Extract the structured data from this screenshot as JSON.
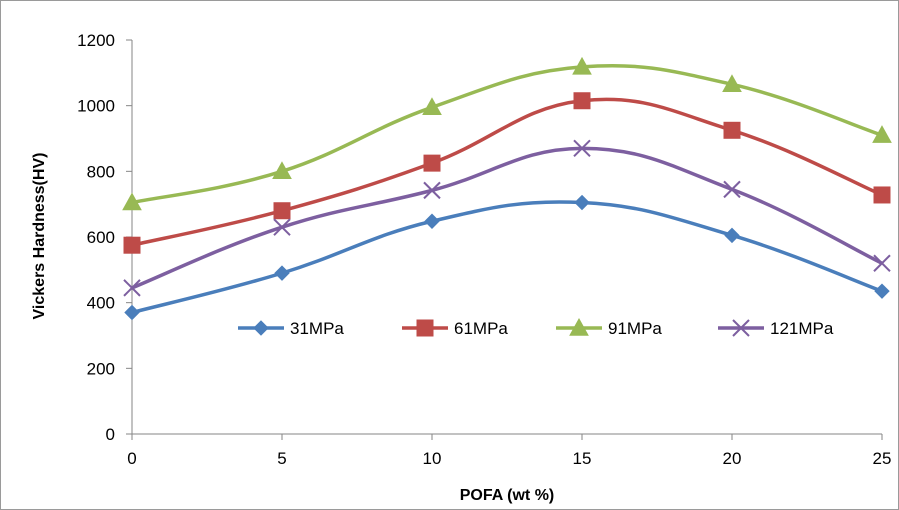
{
  "chart_data": {
    "type": "line",
    "xlabel": "POFA (wt %)",
    "ylabel": "Vickers Hardness(HV)",
    "x": [
      0,
      5,
      10,
      15,
      20,
      25
    ],
    "xlim": [
      0,
      25
    ],
    "ylim": [
      0,
      1200
    ],
    "x_ticks": [
      "0",
      "5",
      "10",
      "15",
      "20",
      "25"
    ],
    "y_ticks": [
      "0",
      "200",
      "400",
      "600",
      "800",
      "1000",
      "1200"
    ],
    "grid": false,
    "smooth": true,
    "legend_position": "inside-bottom",
    "series": [
      {
        "name": "31MPa",
        "values": [
          370,
          490,
          648,
          705,
          605,
          435
        ],
        "color": "#4a7ebb",
        "marker": "diamond"
      },
      {
        "name": "61MPa",
        "values": [
          575,
          680,
          825,
          1015,
          925,
          728
        ],
        "color": "#be4b48",
        "marker": "square"
      },
      {
        "name": "91MPa",
        "values": [
          705,
          800,
          995,
          1118,
          1065,
          910
        ],
        "color": "#98b954",
        "marker": "triangle"
      },
      {
        "name": "121MPa",
        "values": [
          445,
          630,
          742,
          870,
          745,
          520
        ],
        "color": "#7d5fa0",
        "marker": "x"
      }
    ]
  }
}
